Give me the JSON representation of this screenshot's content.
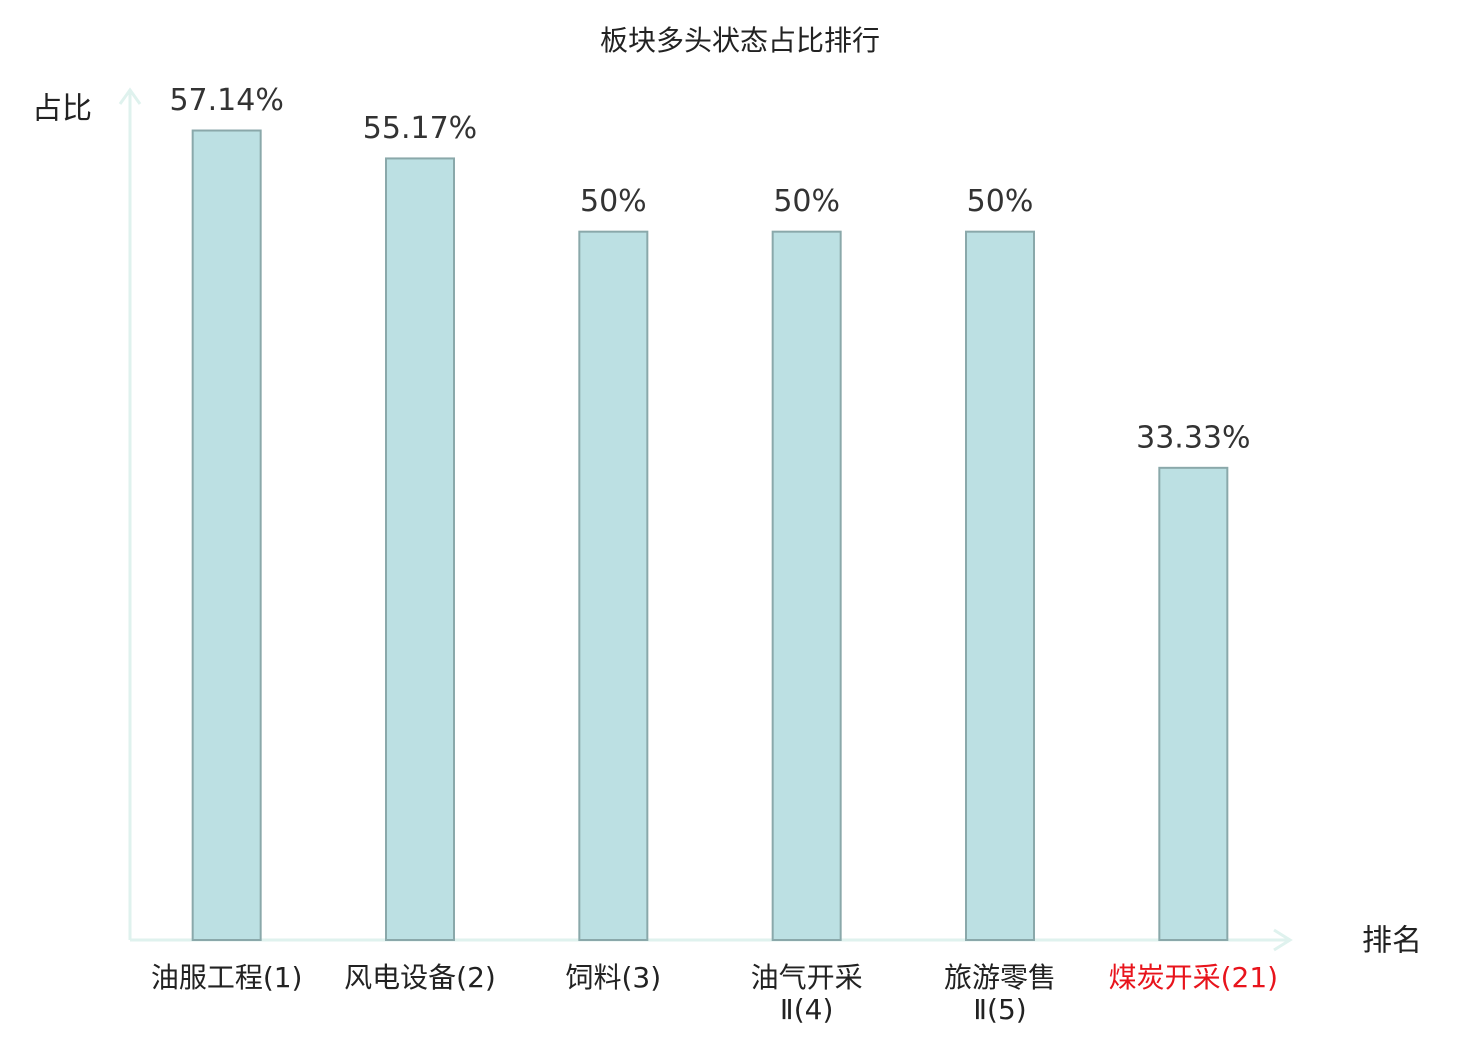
{
  "chart_data": {
    "type": "bar",
    "title": "板块多头状态占比排行",
    "y_label": "占比",
    "x_label": "排名",
    "categories": [
      "油服工程(1)",
      "风电设备(2)",
      "饲料(3)",
      "油气开采\nⅡ(4)",
      "旅游零售\nⅡ(5)",
      "煤炭开采(21)"
    ],
    "category_colors": [
      "#222222",
      "#222222",
      "#222222",
      "#222222",
      "#222222",
      "#e8141c"
    ],
    "values": [
      57.14,
      55.17,
      50,
      50,
      50,
      33.33
    ],
    "value_labels": [
      "57.14%",
      "55.17%",
      "50%",
      "50%",
      "50%",
      "33.33%"
    ],
    "color": "#bce0e3",
    "ylim": [
      0,
      60
    ]
  }
}
